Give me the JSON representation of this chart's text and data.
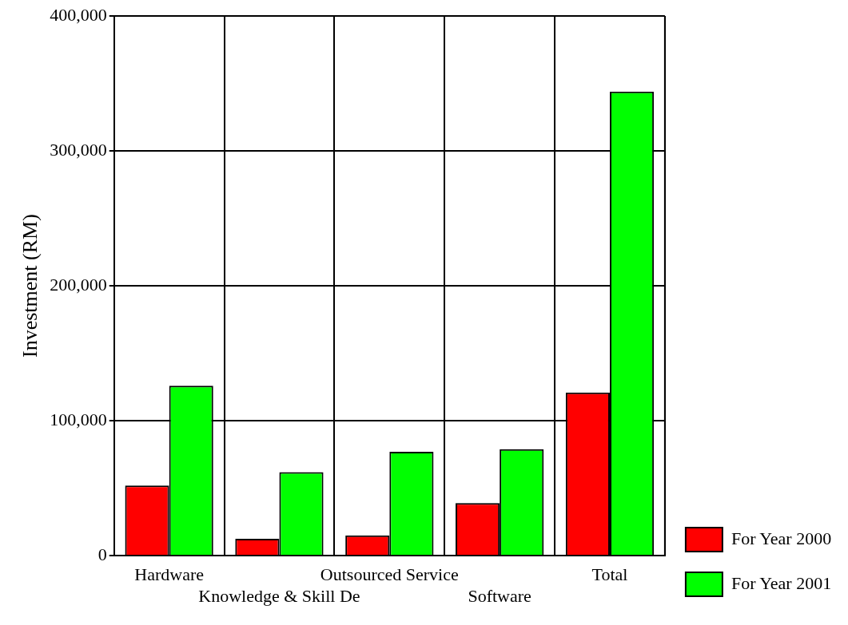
{
  "chart_data": {
    "type": "bar",
    "ylabel": "Investment (RM)",
    "categories": [
      "Hardware",
      "Knowledge & Skill De",
      "Outsourced Service",
      "Software",
      "Total"
    ],
    "series": [
      {
        "name": "For Year 2000",
        "color": "#ff0000",
        "values": [
          52000,
          12500,
          15000,
          39000,
          121000
        ]
      },
      {
        "name": "For Year 2001",
        "color": "#00ff00",
        "values": [
          126000,
          62000,
          77000,
          79000,
          344000
        ]
      }
    ],
    "ylim": [
      0,
      400000
    ],
    "yticks": [
      {
        "value": 0,
        "label": "0"
      },
      {
        "value": 100000,
        "label": "100,000"
      },
      {
        "value": 200000,
        "label": "200,000"
      },
      {
        "value": 300000,
        "label": "300,000"
      },
      {
        "value": 400000,
        "label": "400,000"
      }
    ],
    "grid": true,
    "legend": "right"
  }
}
